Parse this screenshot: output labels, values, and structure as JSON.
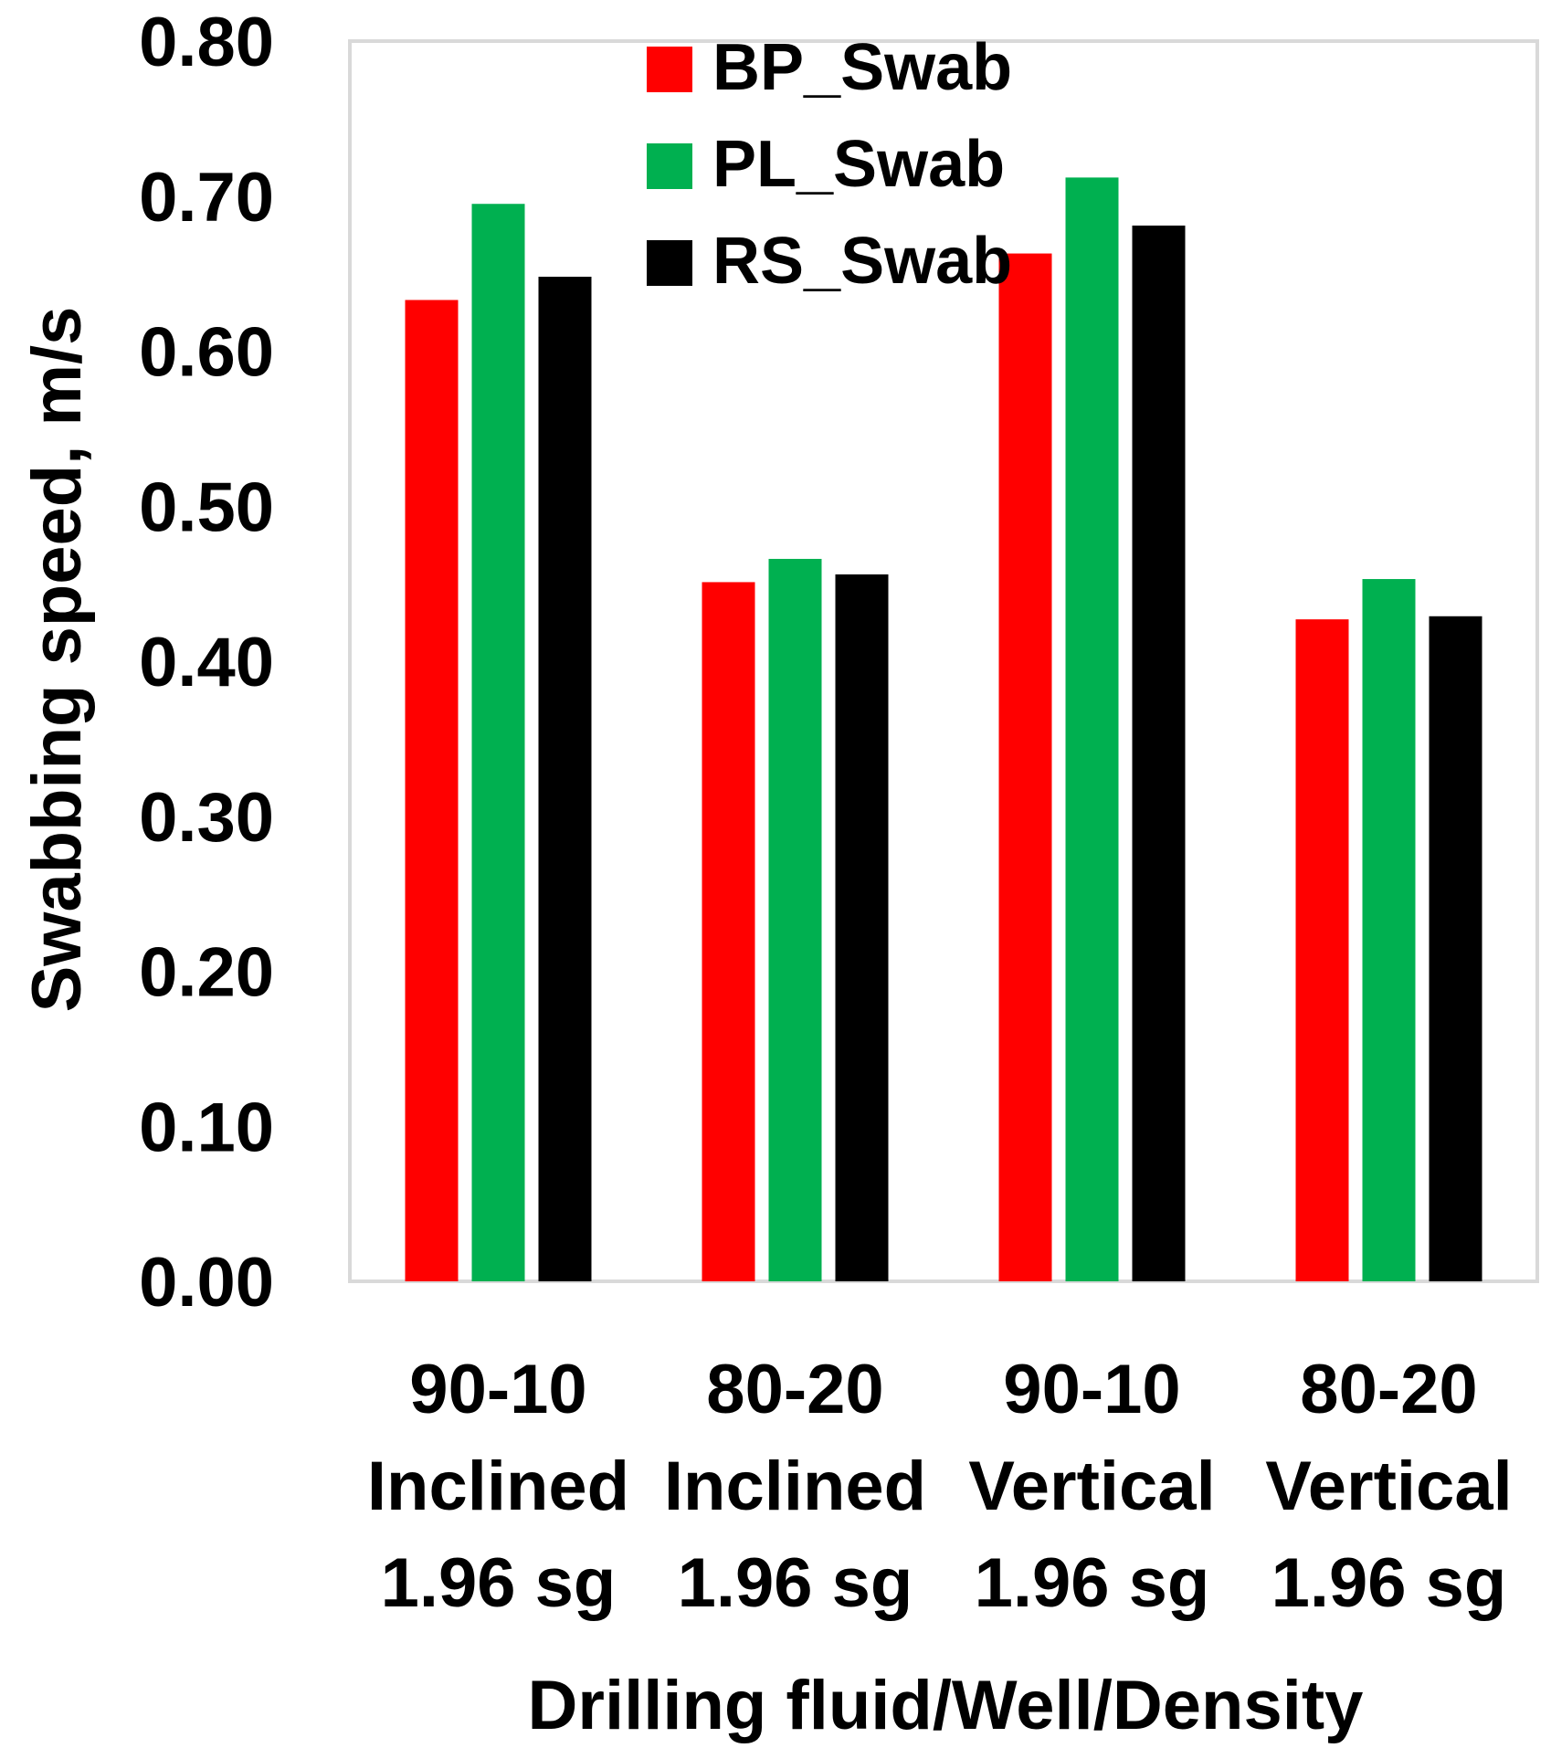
{
  "chart_data": {
    "type": "bar",
    "title": "",
    "xlabel": "Drilling fluid/Well/Density",
    "ylabel": "Swabbing speed, m/s",
    "ylim": [
      0,
      0.8
    ],
    "yticks": [
      "0.00",
      "0.10",
      "0.20",
      "0.30",
      "0.40",
      "0.50",
      "0.60",
      "0.70",
      "0.80"
    ],
    "categories": [
      {
        "line1": "90-10",
        "line2": "Inclined",
        "line3": "1.96 sg"
      },
      {
        "line1": "80-20",
        "line2": "Inclined",
        "line3": "1.96 sg"
      },
      {
        "line1": "90-10",
        "line2": "Vertical",
        "line3": "1.96 sg"
      },
      {
        "line1": "80-20",
        "line2": "Vertical",
        "line3": "1.96 sg"
      }
    ],
    "series": [
      {
        "name": "BP_Swab",
        "color": "#ff0000",
        "values": [
          0.633,
          0.451,
          0.663,
          0.427
        ]
      },
      {
        "name": "PL_Swab",
        "color": "#00b050",
        "values": [
          0.695,
          0.466,
          0.712,
          0.453
        ]
      },
      {
        "name": "RS_Swab",
        "color": "#000000",
        "values": [
          0.648,
          0.456,
          0.681,
          0.429
        ]
      }
    ],
    "grid": false,
    "legend": "top-center"
  }
}
